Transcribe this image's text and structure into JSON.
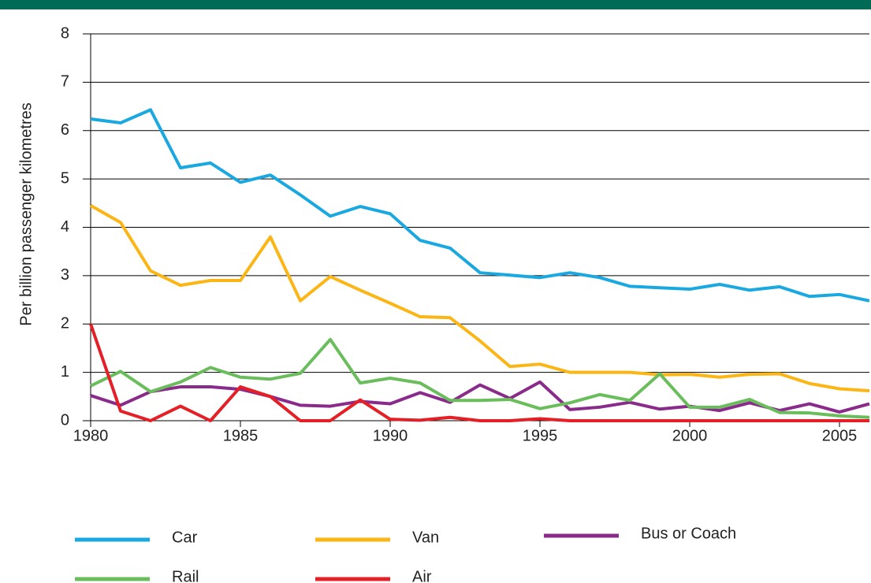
{
  "chart_data": {
    "type": "line",
    "y_label": "Per billion passenger kilometres",
    "x": [
      1980,
      1981,
      1982,
      1983,
      1984,
      1985,
      1986,
      1987,
      1988,
      1989,
      1990,
      1991,
      1992,
      1993,
      1994,
      1995,
      1996,
      1997,
      1998,
      1999,
      2000,
      2001,
      2002,
      2003,
      2004,
      2005,
      2006
    ],
    "series": [
      {
        "name": "Car",
        "color": "#19a8e0",
        "values": [
          6.24,
          6.16,
          6.43,
          5.23,
          5.33,
          4.93,
          5.08,
          4.67,
          4.23,
          4.43,
          4.28,
          3.73,
          3.57,
          3.06,
          3.01,
          2.96,
          3.06,
          2.96,
          2.78,
          2.75,
          2.72,
          2.82,
          2.7,
          2.77,
          2.57,
          2.61,
          2.48
        ]
      },
      {
        "name": "Van",
        "color": "#fbb616",
        "values": [
          4.45,
          4.1,
          3.1,
          2.8,
          2.9,
          2.9,
          3.8,
          2.48,
          2.98,
          2.7,
          2.43,
          2.15,
          2.13,
          1.65,
          1.12,
          1.17,
          1.0,
          1.0,
          1.0,
          0.95,
          0.96,
          0.9,
          0.96,
          0.97,
          0.77,
          0.66,
          0.62
        ]
      },
      {
        "name": "Bus or Coach",
        "color": "#8a2b8c",
        "values": [
          0.52,
          0.32,
          0.6,
          0.7,
          0.7,
          0.65,
          0.5,
          0.32,
          0.3,
          0.4,
          0.35,
          0.58,
          0.38,
          0.74,
          0.46,
          0.8,
          0.23,
          0.28,
          0.38,
          0.24,
          0.3,
          0.21,
          0.37,
          0.21,
          0.35,
          0.18,
          0.35
        ]
      },
      {
        "name": "Rail",
        "color": "#6abd5b",
        "values": [
          0.72,
          1.02,
          0.6,
          0.8,
          1.1,
          0.9,
          0.86,
          0.98,
          1.68,
          0.78,
          0.88,
          0.78,
          0.42,
          0.42,
          0.44,
          0.25,
          0.37,
          0.54,
          0.42,
          0.97,
          0.28,
          0.28,
          0.44,
          0.17,
          0.16,
          0.1,
          0.07
        ]
      },
      {
        "name": "Air",
        "color": "#e41f26",
        "values": [
          2.0,
          0.2,
          0,
          0.3,
          0,
          0.7,
          0.5,
          0,
          0,
          0.43,
          0.03,
          0.01,
          0.07,
          0,
          0,
          0.04,
          0,
          0,
          0,
          0,
          0,
          0,
          0,
          0,
          0,
          0,
          0
        ]
      }
    ],
    "xlim": [
      1980,
      2006
    ],
    "xticks": [
      1980,
      1985,
      1990,
      1995,
      2000,
      2005
    ],
    "ylim": [
      0,
      8
    ],
    "yticks": [
      0,
      1,
      2,
      3,
      4,
      5,
      6,
      7,
      8
    ],
    "grid": true
  }
}
